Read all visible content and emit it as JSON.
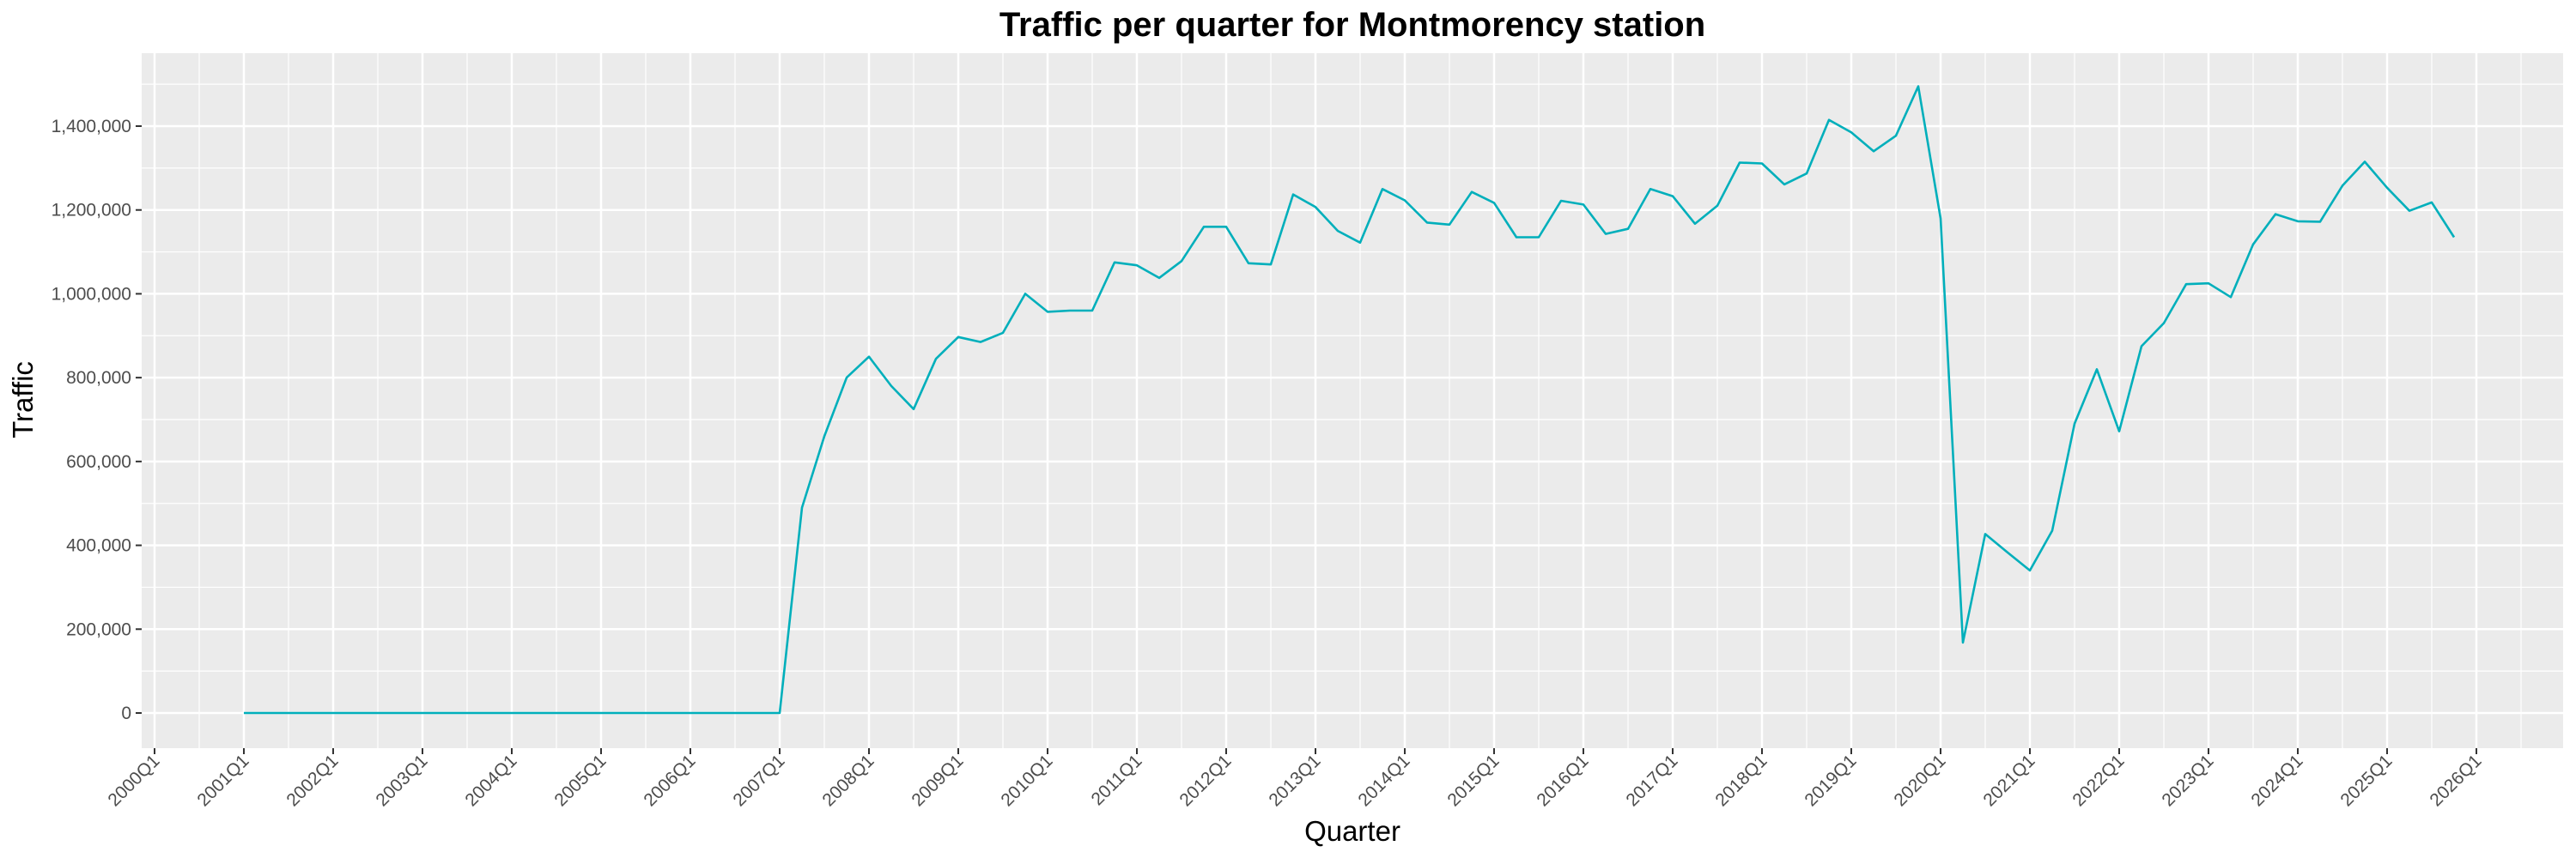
{
  "chart_data": {
    "type": "line",
    "title": "Traffic per quarter for Montmorency station",
    "xlabel": "Quarter",
    "ylabel": "Traffic",
    "ylim": [
      -60000,
      1540000
    ],
    "grid": true,
    "line_color": "#00AFBB",
    "panel_color": "#EBEBEB",
    "x_ticks": [
      "2000Q1",
      "2001Q1",
      "2002Q1",
      "2003Q1",
      "2004Q1",
      "2005Q1",
      "2006Q1",
      "2007Q1",
      "2008Q1",
      "2009Q1",
      "2010Q1",
      "2011Q1",
      "2012Q1",
      "2013Q1",
      "2014Q1",
      "2015Q1",
      "2016Q1",
      "2017Q1",
      "2018Q1",
      "2019Q1",
      "2020Q1",
      "2021Q1",
      "2022Q1",
      "2023Q1",
      "2024Q1",
      "2025Q1",
      "2026Q1"
    ],
    "y_ticks": [
      0,
      200000,
      400000,
      600000,
      800000,
      1000000,
      1200000,
      1400000
    ],
    "y_tick_labels": [
      "0",
      "200,000",
      "400,000",
      "600,000",
      "800,000",
      "1,000,000",
      "1,200,000",
      "1,400,000"
    ],
    "series": [
      {
        "name": "Traffic",
        "start": "2001Q1",
        "values": [
          0,
          0,
          0,
          0,
          0,
          0,
          0,
          0,
          0,
          0,
          0,
          0,
          0,
          0,
          0,
          0,
          0,
          0,
          0,
          0,
          0,
          0,
          0,
          0,
          0,
          490000,
          660000,
          800000,
          850000,
          780000,
          725000,
          845000,
          897000,
          885000,
          907000,
          1000000,
          957000,
          960000,
          960000,
          1075000,
          1068000,
          1038000,
          1078000,
          1160000,
          1160000,
          1073000,
          1070000,
          1237000,
          1207000,
          1150000,
          1122000,
          1250000,
          1223000,
          1170000,
          1165000,
          1243000,
          1217000,
          1135000,
          1135000,
          1222000,
          1213000,
          1143000,
          1155000,
          1250000,
          1233000,
          1167000,
          1210000,
          1313000,
          1311000,
          1261000,
          1287000,
          1415000,
          1385000,
          1340000,
          1377000,
          1495000,
          1180000,
          168000,
          427000,
          383000,
          340000,
          435000,
          690000,
          820000,
          672000,
          875000,
          930000,
          1023000,
          1025000,
          992000,
          1118000,
          1190000,
          1173000,
          1172000,
          1258000,
          1315000,
          1253000,
          1198000,
          1218000,
          1135000
        ]
      }
    ]
  }
}
